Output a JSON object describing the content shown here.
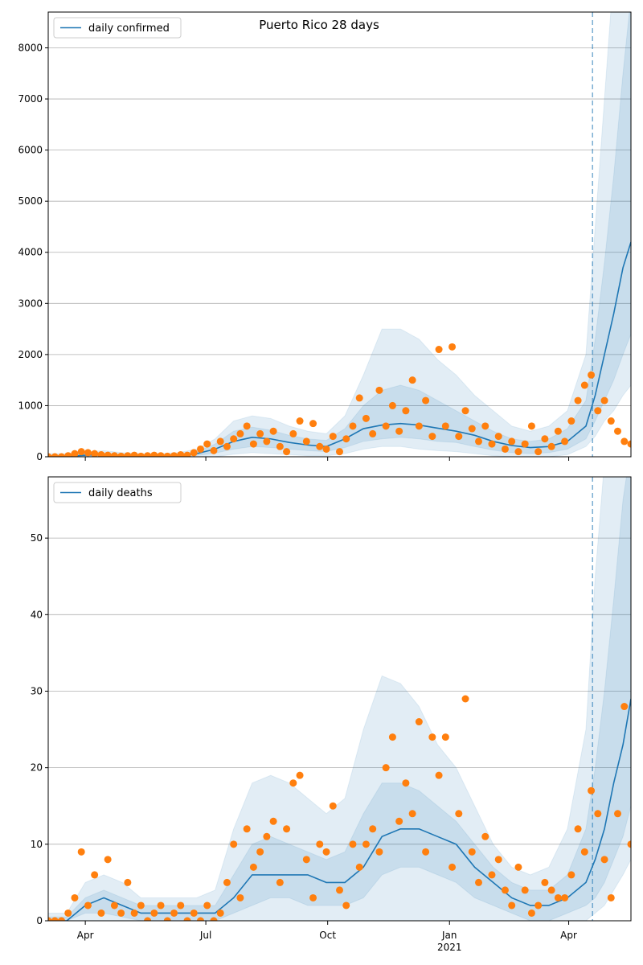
{
  "title": "Puerto Rico 28 days",
  "chart_data": [
    {
      "type": "line",
      "xlim": [
        0,
        440
      ],
      "xticks": [
        {
          "value": 28,
          "label": "Apr"
        },
        {
          "value": 119,
          "label": "Jul"
        },
        {
          "value": 211,
          "label": "Oct"
        },
        {
          "value": 303,
          "label": "Jan\n2021"
        },
        {
          "value": 393,
          "label": "Apr"
        }
      ],
      "ylim": [
        0,
        8700
      ],
      "yticks": [
        0,
        1000,
        2000,
        3000,
        4000,
        5000,
        6000,
        7000,
        8000
      ],
      "grid": true,
      "legend": "upper left",
      "vlines": [
        411
      ],
      "x": [
        0,
        14,
        28,
        42,
        56,
        70,
        84,
        98,
        112,
        126,
        140,
        154,
        168,
        182,
        196,
        210,
        224,
        238,
        252,
        266,
        280,
        294,
        308,
        322,
        336,
        350,
        364,
        378,
        392,
        406,
        413,
        420,
        427,
        434,
        440
      ],
      "series": [
        {
          "name": "daily confirmed",
          "color": "#1f77b4",
          "values": [
            10,
            10,
            30,
            40,
            20,
            10,
            10,
            20,
            60,
            150,
            300,
            380,
            350,
            280,
            230,
            200,
            350,
            550,
            620,
            650,
            620,
            560,
            500,
            420,
            300,
            220,
            180,
            200,
            300,
            600,
            1200,
            2000,
            2800,
            3700,
            4200
          ]
        }
      ],
      "bands": [
        {
          "color": "#1f77b4",
          "lower": [
            0,
            0,
            0,
            0,
            0,
            0,
            0,
            0,
            0,
            0,
            50,
            80,
            60,
            40,
            20,
            20,
            60,
            150,
            200,
            200,
            150,
            120,
            100,
            60,
            20,
            0,
            0,
            0,
            40,
            200,
            400,
            700,
            900,
            1200,
            1400
          ],
          "upper": [
            60,
            60,
            100,
            120,
            80,
            60,
            60,
            80,
            150,
            350,
            700,
            800,
            750,
            600,
            500,
            450,
            800,
            1600,
            2500,
            2500,
            2300,
            1900,
            1600,
            1200,
            900,
            600,
            500,
            600,
            900,
            2000,
            4500,
            7000,
            9500,
            9500,
            9500
          ]
        },
        {
          "color": "#1f77b4",
          "lower": [
            0,
            0,
            10,
            15,
            5,
            0,
            0,
            5,
            25,
            70,
            150,
            200,
            180,
            150,
            120,
            100,
            180,
            300,
            350,
            380,
            350,
            300,
            280,
            200,
            130,
            80,
            60,
            80,
            150,
            350,
            700,
            1100,
            1500,
            2000,
            2400
          ],
          "upper": [
            30,
            30,
            60,
            70,
            40,
            25,
            25,
            40,
            100,
            250,
            500,
            580,
            520,
            420,
            350,
            320,
            550,
            1000,
            1300,
            1400,
            1300,
            1100,
            900,
            700,
            500,
            350,
            300,
            350,
            550,
            1100,
            2300,
            3800,
            5500,
            7500,
            9000
          ]
        }
      ],
      "points": {
        "color": "#ff7f0e",
        "x": [
          0,
          5,
          10,
          15,
          20,
          25,
          30,
          35,
          40,
          45,
          50,
          55,
          60,
          65,
          70,
          75,
          80,
          85,
          90,
          95,
          100,
          105,
          110,
          115,
          120,
          125,
          130,
          135,
          140,
          145,
          150,
          155,
          160,
          165,
          170,
          175,
          180,
          185,
          190,
          195,
          200,
          205,
          210,
          215,
          220,
          225,
          230,
          235,
          240,
          245,
          250,
          255,
          260,
          265,
          270,
          275,
          280,
          285,
          290,
          295,
          300,
          305,
          310,
          315,
          320,
          325,
          330,
          335,
          340,
          345,
          350,
          355,
          360,
          365,
          370,
          375,
          380,
          385,
          390,
          395,
          400,
          405,
          410,
          415,
          420,
          425,
          430,
          435,
          440
        ],
        "values": [
          0,
          0,
          0,
          20,
          60,
          100,
          80,
          60,
          40,
          30,
          20,
          10,
          20,
          30,
          10,
          20,
          30,
          20,
          10,
          20,
          40,
          30,
          80,
          150,
          250,
          120,
          300,
          200,
          350,
          450,
          600,
          250,
          450,
          300,
          500,
          200,
          100,
          450,
          700,
          300,
          650,
          200,
          150,
          400,
          100,
          350,
          600,
          1150,
          750,
          450,
          1300,
          600,
          1000,
          500,
          900,
          1500,
          600,
          1100,
          400,
          2100,
          600,
          2150,
          400,
          900,
          550,
          300,
          600,
          250,
          400,
          150,
          300,
          100,
          250,
          600,
          100,
          350,
          200,
          500,
          300,
          700,
          1100,
          1400,
          1600,
          900,
          1100,
          700,
          500,
          300,
          250
        ]
      }
    },
    {
      "type": "line",
      "xlim": [
        0,
        440
      ],
      "xticks": [
        {
          "value": 28,
          "label": "Apr"
        },
        {
          "value": 119,
          "label": "Jul"
        },
        {
          "value": 211,
          "label": "Oct"
        },
        {
          "value": 303,
          "label": "Jan\n2021"
        },
        {
          "value": 393,
          "label": "Apr"
        }
      ],
      "ylim": [
        0,
        58
      ],
      "yticks": [
        0,
        10,
        20,
        30,
        40,
        50
      ],
      "grid": true,
      "legend": "upper left",
      "vlines": [
        411
      ],
      "x": [
        0,
        14,
        28,
        42,
        56,
        70,
        84,
        98,
        112,
        126,
        140,
        154,
        168,
        182,
        196,
        210,
        224,
        238,
        252,
        266,
        280,
        294,
        308,
        322,
        336,
        350,
        364,
        378,
        392,
        406,
        413,
        420,
        427,
        434,
        440
      ],
      "series": [
        {
          "name": "daily deaths",
          "color": "#1f77b4",
          "values": [
            0,
            0,
            2,
            3,
            2,
            1,
            1,
            1,
            1,
            1,
            3,
            6,
            6,
            6,
            6,
            5,
            5,
            7,
            11,
            12,
            12,
            11,
            10,
            7,
            5,
            3,
            2,
            2,
            3,
            5,
            8,
            12,
            18,
            23,
            29
          ]
        }
      ],
      "bands": [
        {
          "color": "#1f77b4",
          "lower": [
            0,
            0,
            0,
            0,
            0,
            0,
            0,
            0,
            0,
            0,
            0,
            0,
            0,
            0,
            0,
            0,
            0,
            0,
            0,
            0,
            0,
            0,
            0,
            0,
            0,
            0,
            0,
            0,
            0,
            0,
            1,
            2,
            4,
            6,
            8
          ],
          "upper": [
            1,
            1,
            5,
            6,
            5,
            3,
            3,
            3,
            3,
            4,
            12,
            18,
            19,
            18,
            16,
            14,
            16,
            25,
            32,
            31,
            28,
            23,
            20,
            15,
            10,
            7,
            6,
            7,
            12,
            25,
            45,
            60,
            65,
            65,
            65
          ]
        },
        {
          "color": "#1f77b4",
          "lower": [
            0,
            0,
            1,
            1,
            0.5,
            0,
            0,
            0,
            0,
            0,
            1,
            2,
            3,
            3,
            2,
            2,
            2,
            3,
            6,
            7,
            7,
            6,
            5,
            3,
            2,
            1,
            0,
            0,
            1,
            2,
            3,
            5,
            8,
            11,
            15
          ],
          "upper": [
            0.5,
            0.5,
            3,
            4,
            3,
            2,
            2,
            2,
            2,
            2,
            6,
            10,
            11,
            10,
            9,
            8,
            9,
            14,
            18,
            18,
            17,
            15,
            13,
            10,
            7,
            5,
            4,
            4,
            6,
            12,
            20,
            30,
            42,
            55,
            62
          ]
        }
      ],
      "points": {
        "color": "#ff7f0e",
        "x": [
          0,
          5,
          10,
          15,
          20,
          25,
          30,
          35,
          40,
          45,
          50,
          55,
          60,
          65,
          70,
          75,
          80,
          85,
          90,
          95,
          100,
          105,
          110,
          115,
          120,
          125,
          130,
          135,
          140,
          145,
          150,
          155,
          160,
          165,
          170,
          175,
          180,
          185,
          190,
          195,
          200,
          205,
          210,
          215,
          220,
          225,
          230,
          235,
          240,
          245,
          250,
          255,
          260,
          265,
          270,
          275,
          280,
          285,
          290,
          295,
          300,
          305,
          310,
          315,
          320,
          325,
          330,
          335,
          340,
          345,
          350,
          355,
          360,
          365,
          370,
          375,
          380,
          385,
          390,
          395,
          400,
          405,
          410,
          415,
          420,
          425,
          430,
          435,
          440
        ],
        "values": [
          0,
          0,
          0,
          1,
          3,
          9,
          2,
          6,
          1,
          8,
          2,
          1,
          5,
          1,
          2,
          0,
          1,
          2,
          0,
          1,
          2,
          0,
          1,
          0,
          2,
          0,
          1,
          5,
          10,
          3,
          12,
          7,
          9,
          11,
          13,
          5,
          12,
          18,
          19,
          8,
          3,
          10,
          9,
          15,
          4,
          2,
          10,
          7,
          10,
          12,
          9,
          20,
          24,
          13,
          18,
          14,
          26,
          9,
          24,
          19,
          24,
          7,
          14,
          29,
          9,
          5,
          11,
          6,
          8,
          4,
          2,
          7,
          4,
          1,
          2,
          5,
          4,
          3,
          3,
          6,
          12,
          9,
          17,
          14,
          8,
          3,
          14,
          28,
          10
        ]
      }
    }
  ]
}
